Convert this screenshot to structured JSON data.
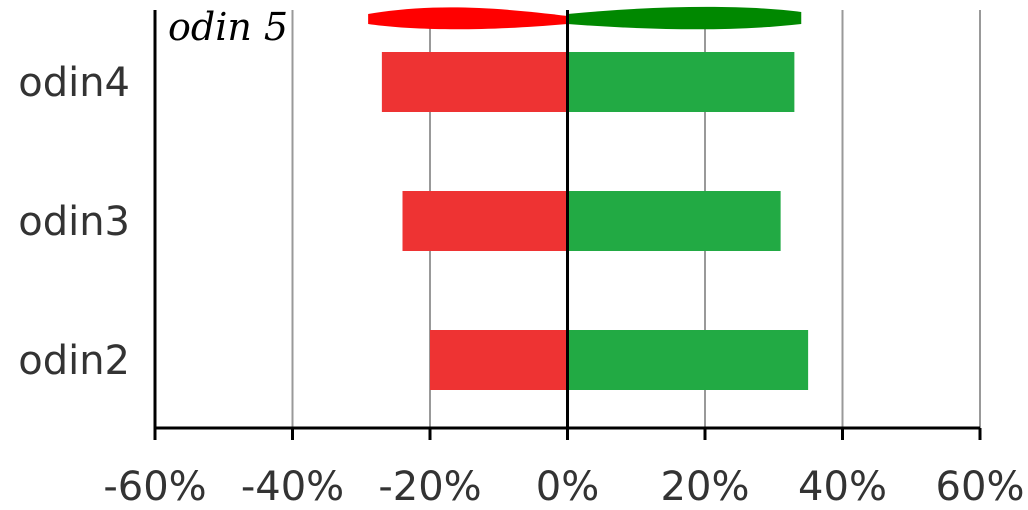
{
  "chart_data": {
    "type": "bar",
    "orientation": "horizontal",
    "categories": [
      "odin2",
      "odin3",
      "odin4"
    ],
    "series": [
      {
        "values": [
          -20,
          -24,
          -27
        ],
        "color": "#ee3333"
      },
      {
        "values": [
          35,
          31,
          33
        ],
        "color": "#22aa44"
      }
    ],
    "annotation": {
      "category": "odin 5",
      "values": [
        -29,
        34
      ],
      "colors": [
        "#ff0000",
        "#008800"
      ]
    },
    "xlim": [
      -60,
      60
    ],
    "xticks": [
      -60,
      -40,
      -20,
      0,
      20,
      40,
      60
    ],
    "xtick_labels": [
      "-60%",
      "-40%",
      "-20%",
      "0%",
      "20%",
      "40%",
      "60%"
    ],
    "grid": "vertical",
    "title": "",
    "xlabel": "",
    "ylabel": ""
  }
}
